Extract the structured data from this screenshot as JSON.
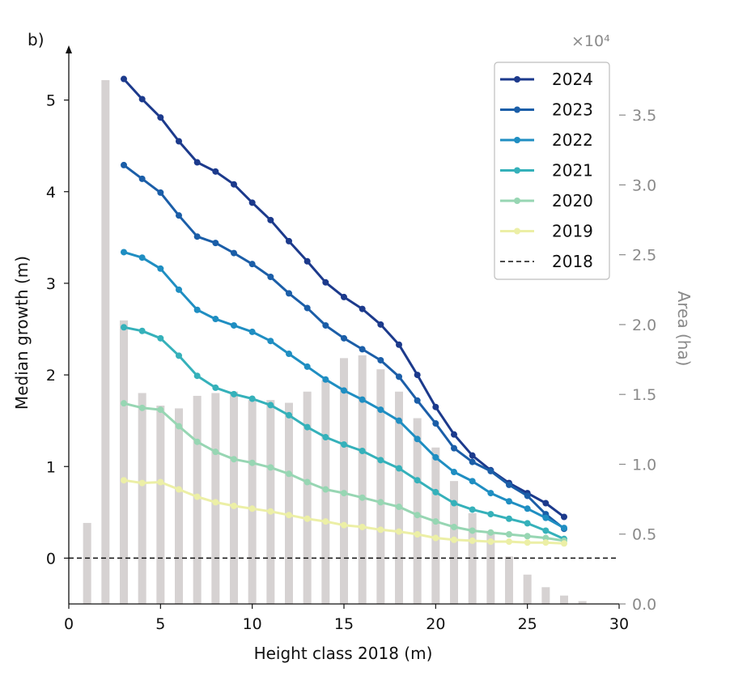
{
  "panel_label": "b)",
  "colors": {
    "2024": "#1c3a8c",
    "2023": "#1b5ea8",
    "2022": "#1f8ec2",
    "2021": "#35b1ba",
    "2020": "#97d6b3",
    "2019": "#ecefa6",
    "bars": "#d6d2d2",
    "right_axis": "#8a8a8a",
    "text": "#111111"
  },
  "chart_data": {
    "type": "line",
    "xlabel": "Height class 2018 (m)",
    "ylabel": "Median growth (m)",
    "y2label": "Area (ha)",
    "y2_multiplier": "×10⁴",
    "xlim": [
      0,
      30
    ],
    "ylim": [
      -0.5,
      5.5
    ],
    "y2lim": [
      0,
      3.75
    ],
    "x_ticks": [
      0,
      5,
      10,
      15,
      20,
      25,
      30
    ],
    "y_ticks": [
      0,
      1,
      2,
      3,
      4,
      5
    ],
    "y2_ticks": [
      "0.0",
      "0.5",
      "1.0",
      "1.5",
      "2.0",
      "2.5",
      "3.0",
      "3.5"
    ],
    "legend_position": "top-right",
    "x": [
      3,
      4,
      5,
      6,
      7,
      8,
      9,
      10,
      11,
      12,
      13,
      14,
      15,
      16,
      17,
      18,
      19,
      20,
      21,
      22,
      23,
      24,
      25,
      26,
      27
    ],
    "series": [
      {
        "name": "2024",
        "values": [
          5.23,
          5.01,
          4.81,
          4.55,
          4.32,
          4.22,
          4.08,
          3.88,
          3.69,
          3.46,
          3.24,
          3.01,
          2.85,
          2.72,
          2.55,
          2.33,
          2.0,
          1.65,
          1.35,
          1.12,
          0.96,
          0.82,
          0.71,
          0.6,
          0.45
        ]
      },
      {
        "name": "2023",
        "values": [
          4.29,
          4.14,
          3.99,
          3.74,
          3.51,
          3.44,
          3.33,
          3.21,
          3.07,
          2.89,
          2.73,
          2.54,
          2.4,
          2.28,
          2.16,
          1.98,
          1.72,
          1.47,
          1.2,
          1.05,
          0.95,
          0.8,
          0.68,
          0.48,
          0.32
        ]
      },
      {
        "name": "2022",
        "values": [
          3.34,
          3.28,
          3.16,
          2.93,
          2.71,
          2.61,
          2.54,
          2.47,
          2.37,
          2.23,
          2.09,
          1.95,
          1.83,
          1.73,
          1.62,
          1.5,
          1.3,
          1.1,
          0.94,
          0.84,
          0.71,
          0.62,
          0.54,
          0.44,
          0.33
        ]
      },
      {
        "name": "2021",
        "values": [
          2.52,
          2.48,
          2.4,
          2.21,
          1.99,
          1.86,
          1.79,
          1.74,
          1.67,
          1.56,
          1.43,
          1.32,
          1.24,
          1.17,
          1.07,
          0.98,
          0.85,
          0.72,
          0.6,
          0.53,
          0.48,
          0.43,
          0.38,
          0.3,
          0.21
        ]
      },
      {
        "name": "2020",
        "values": [
          1.69,
          1.64,
          1.62,
          1.44,
          1.27,
          1.16,
          1.08,
          1.04,
          0.99,
          0.92,
          0.83,
          0.75,
          0.71,
          0.66,
          0.61,
          0.56,
          0.47,
          0.4,
          0.34,
          0.3,
          0.28,
          0.26,
          0.24,
          0.22,
          0.19
        ]
      },
      {
        "name": "2019",
        "values": [
          0.85,
          0.82,
          0.83,
          0.75,
          0.67,
          0.61,
          0.57,
          0.54,
          0.51,
          0.47,
          0.43,
          0.4,
          0.36,
          0.34,
          0.31,
          0.29,
          0.26,
          0.22,
          0.2,
          0.19,
          0.18,
          0.18,
          0.17,
          0.17,
          0.16
        ]
      },
      {
        "name": "2018",
        "values": [
          0,
          0,
          0,
          0,
          0,
          0,
          0,
          0,
          0,
          0,
          0,
          0,
          0,
          0,
          0,
          0,
          0,
          0,
          0,
          0,
          0,
          0,
          0,
          0,
          0
        ],
        "style": "dashed"
      }
    ],
    "bars": {
      "name": "Area",
      "axis": "right",
      "x": [
        1,
        2,
        3,
        4,
        5,
        6,
        7,
        8,
        9,
        10,
        11,
        12,
        13,
        14,
        15,
        16,
        17,
        18,
        19,
        20,
        21,
        22,
        23,
        24,
        25,
        26,
        27,
        28,
        29
      ],
      "values": [
        0.58,
        3.75,
        2.03,
        1.51,
        1.42,
        1.4,
        1.49,
        1.51,
        1.52,
        1.46,
        1.46,
        1.44,
        1.52,
        1.6,
        1.76,
        1.78,
        1.68,
        1.52,
        1.33,
        1.12,
        0.88,
        0.65,
        0.51,
        0.34,
        0.21,
        0.12,
        0.06,
        0.02,
        0.0
      ]
    }
  }
}
